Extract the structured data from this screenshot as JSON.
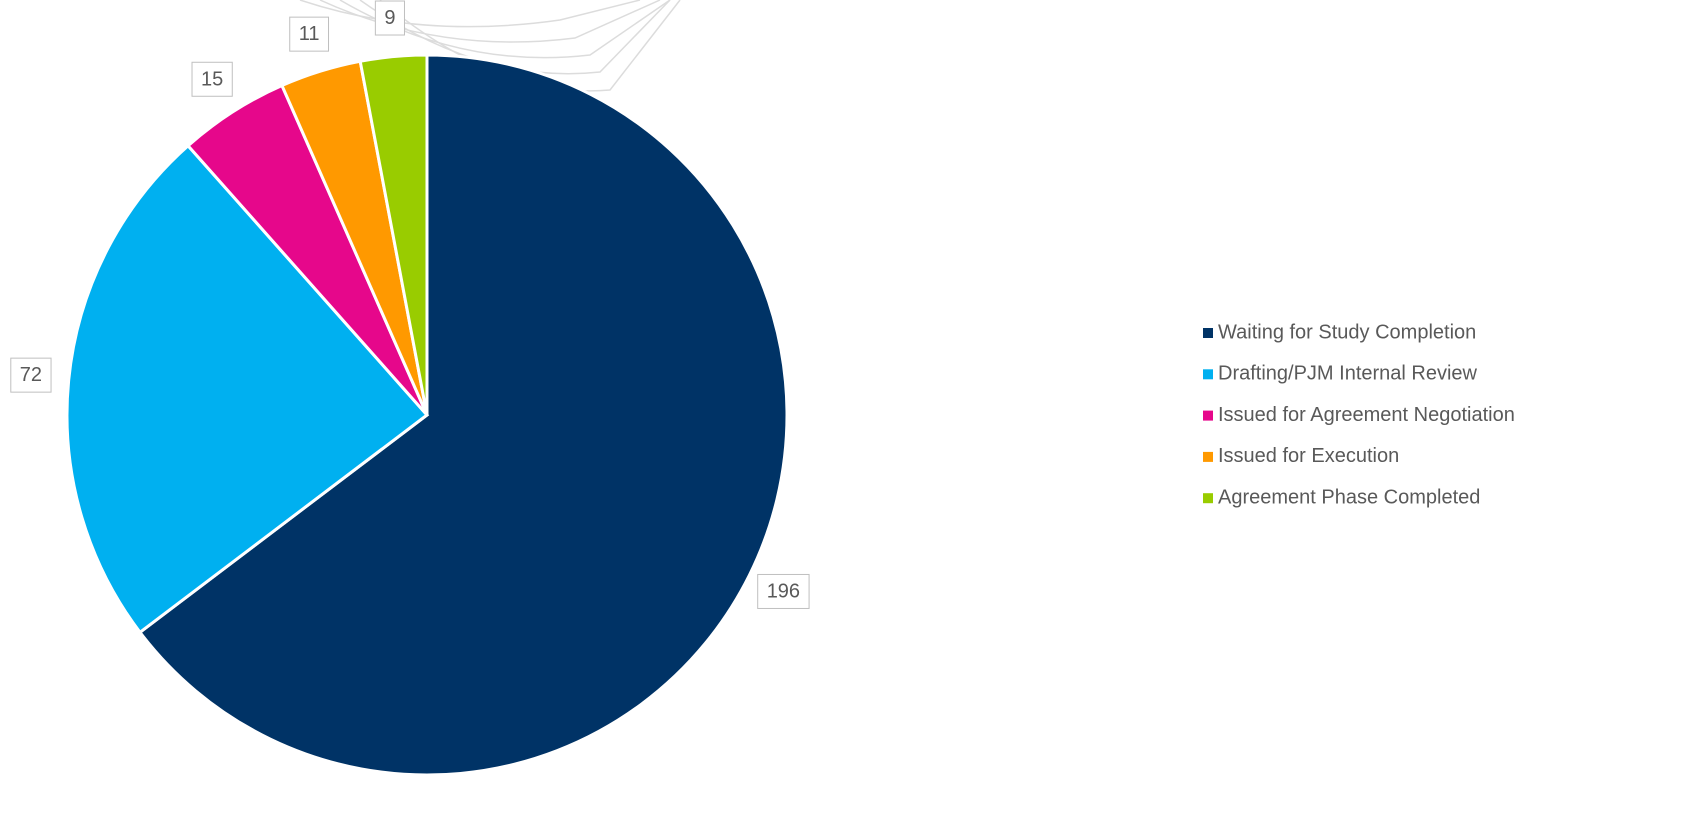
{
  "chart_data": {
    "type": "pie",
    "categories": [
      "Waiting for Study Completion",
      "Drafting/PJM Internal Review",
      "Issued for Agreement Negotiation",
      "Issued for Execution",
      "Agreement Phase Completed"
    ],
    "values": [
      196,
      72,
      15,
      11,
      9
    ],
    "colors": [
      "#003366",
      "#00b0f0",
      "#e6078b",
      "#ff9900",
      "#99cc00"
    ],
    "legend": "right"
  }
}
